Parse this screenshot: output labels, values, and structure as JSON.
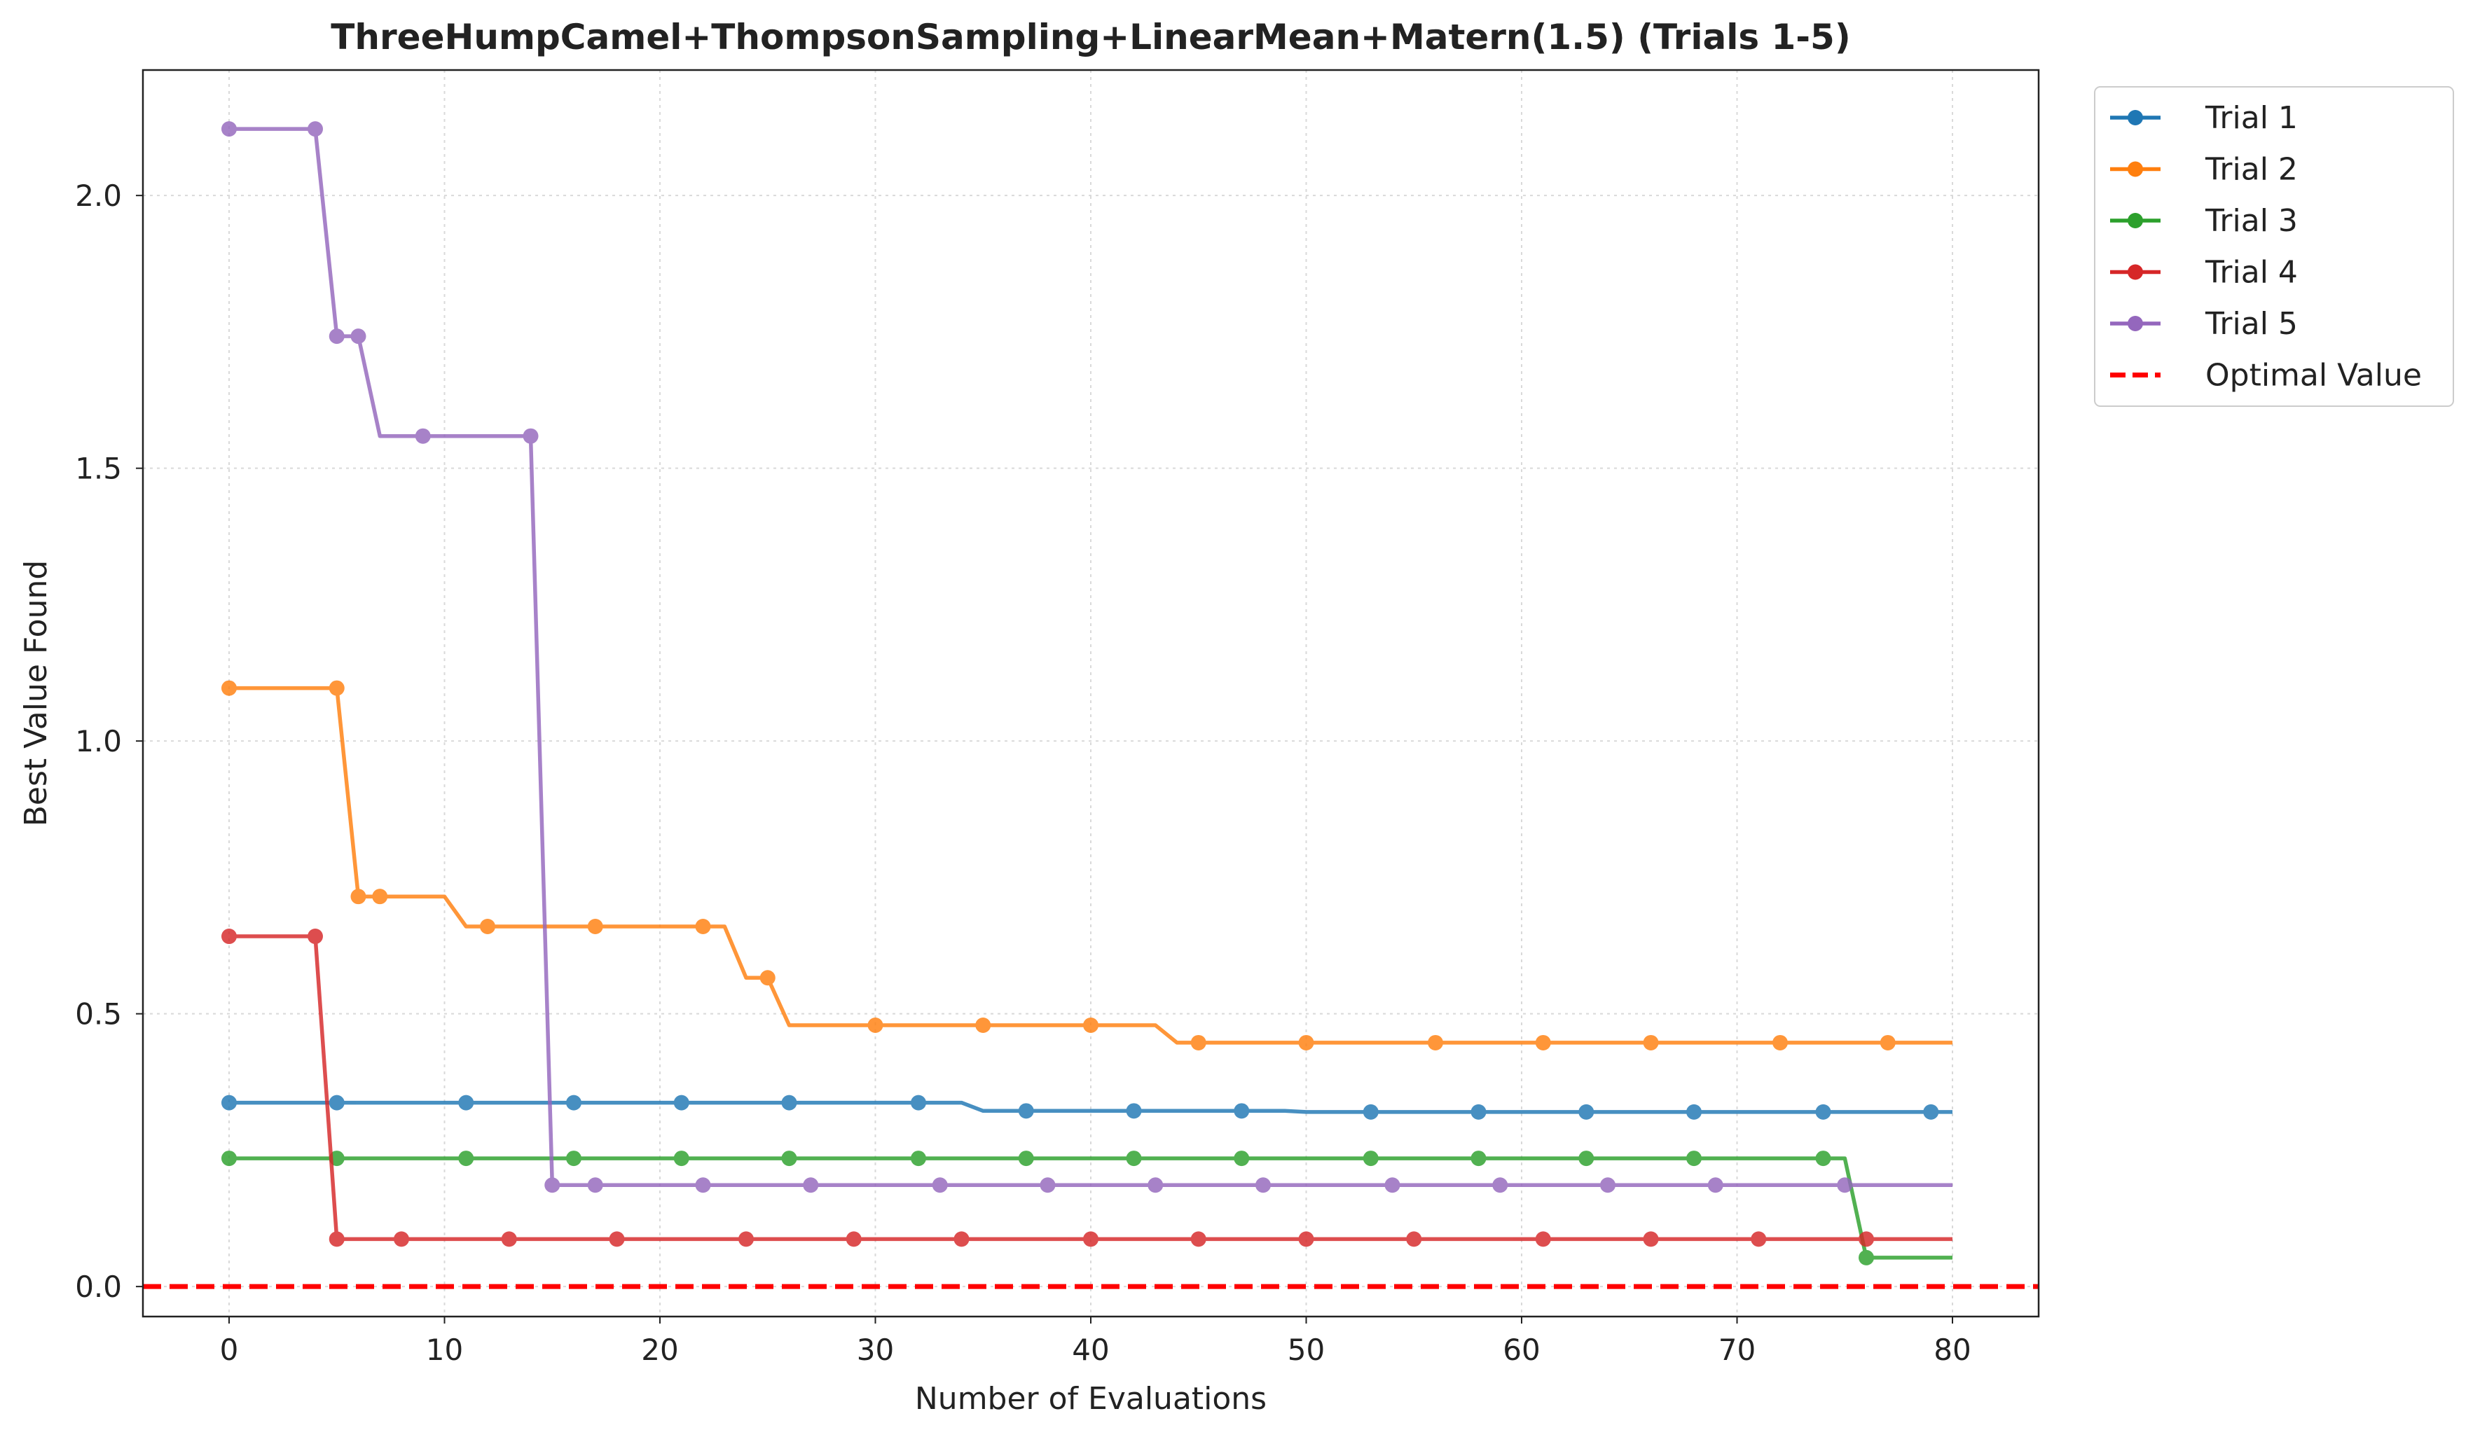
{
  "chart_data": {
    "type": "line",
    "title": "ThreeHumpCamel+ThompsonSampling+LinearMean+Matern(1.5) (Trials 1-5)",
    "xlabel": "Number of Evaluations",
    "ylabel": "Best Value Found",
    "xlim": [
      -4,
      84
    ],
    "ylim": [
      -0.055,
      2.23
    ],
    "xticks": [
      0,
      10,
      20,
      30,
      40,
      50,
      60,
      70,
      80
    ],
    "yticks": [
      0.0,
      0.5,
      1.0,
      1.5,
      2.0
    ],
    "xtick_labels": [
      "0",
      "10",
      "20",
      "30",
      "40",
      "50",
      "60",
      "70",
      "80"
    ],
    "ytick_labels": [
      "0.0",
      "0.5",
      "1.0",
      "1.5",
      "2.0"
    ],
    "grid": true,
    "legend_position": "outside-top-right",
    "series": [
      {
        "name": "Trial 1",
        "color": "#1f77b4",
        "points": [
          [
            0,
            0.337
          ],
          [
            34,
            0.337
          ],
          [
            35,
            0.322
          ],
          [
            49,
            0.322
          ],
          [
            50,
            0.32
          ],
          [
            80,
            0.32
          ]
        ],
        "markers": [
          [
            0,
            0.337
          ],
          [
            5,
            0.337
          ],
          [
            11,
            0.337
          ],
          [
            16,
            0.337
          ],
          [
            21,
            0.337
          ],
          [
            26,
            0.337
          ],
          [
            32,
            0.337
          ],
          [
            37,
            0.322
          ],
          [
            42,
            0.322
          ],
          [
            47,
            0.322
          ],
          [
            53,
            0.32
          ],
          [
            58,
            0.32
          ],
          [
            63,
            0.32
          ],
          [
            68,
            0.32
          ],
          [
            74,
            0.32
          ],
          [
            79,
            0.32
          ]
        ]
      },
      {
        "name": "Trial 2",
        "color": "#ff7f0e",
        "points": [
          [
            0,
            1.097
          ],
          [
            5,
            1.097
          ],
          [
            6,
            0.715
          ],
          [
            10,
            0.715
          ],
          [
            11,
            0.66
          ],
          [
            23,
            0.66
          ],
          [
            24,
            0.566
          ],
          [
            25,
            0.566
          ],
          [
            26,
            0.479
          ],
          [
            43,
            0.479
          ],
          [
            44,
            0.447
          ],
          [
            80,
            0.447
          ]
        ],
        "markers": [
          [
            0,
            1.097
          ],
          [
            5,
            1.097
          ],
          [
            6,
            0.715
          ],
          [
            7,
            0.715
          ],
          [
            12,
            0.66
          ],
          [
            17,
            0.66
          ],
          [
            22,
            0.66
          ],
          [
            25,
            0.566
          ],
          [
            30,
            0.479
          ],
          [
            35,
            0.479
          ],
          [
            40,
            0.479
          ],
          [
            45,
            0.447
          ],
          [
            50,
            0.447
          ],
          [
            56,
            0.447
          ],
          [
            61,
            0.447
          ],
          [
            66,
            0.447
          ],
          [
            72,
            0.447
          ],
          [
            77,
            0.447
          ]
        ]
      },
      {
        "name": "Trial 3",
        "color": "#2ca02c",
        "points": [
          [
            0,
            0.235
          ],
          [
            75,
            0.235
          ],
          [
            76,
            0.053
          ],
          [
            80,
            0.053
          ]
        ],
        "markers": [
          [
            0,
            0.235
          ],
          [
            5,
            0.235
          ],
          [
            11,
            0.235
          ],
          [
            16,
            0.235
          ],
          [
            21,
            0.235
          ],
          [
            26,
            0.235
          ],
          [
            32,
            0.235
          ],
          [
            37,
            0.235
          ],
          [
            42,
            0.235
          ],
          [
            47,
            0.235
          ],
          [
            53,
            0.235
          ],
          [
            58,
            0.235
          ],
          [
            63,
            0.235
          ],
          [
            68,
            0.235
          ],
          [
            74,
            0.235
          ],
          [
            76,
            0.053
          ]
        ]
      },
      {
        "name": "Trial 4",
        "color": "#d62728",
        "points": [
          [
            0,
            0.642
          ],
          [
            4,
            0.642
          ],
          [
            5,
            0.087
          ],
          [
            80,
            0.087
          ]
        ],
        "markers": [
          [
            0,
            0.642
          ],
          [
            4,
            0.642
          ],
          [
            5,
            0.087
          ],
          [
            8,
            0.087
          ],
          [
            13,
            0.087
          ],
          [
            18,
            0.087
          ],
          [
            24,
            0.087
          ],
          [
            29,
            0.087
          ],
          [
            34,
            0.087
          ],
          [
            40,
            0.087
          ],
          [
            45,
            0.087
          ],
          [
            50,
            0.087
          ],
          [
            55,
            0.087
          ],
          [
            61,
            0.087
          ],
          [
            66,
            0.087
          ],
          [
            71,
            0.087
          ],
          [
            76,
            0.087
          ]
        ]
      },
      {
        "name": "Trial 5",
        "color": "#9467bd",
        "points": [
          [
            0,
            2.122
          ],
          [
            4,
            2.122
          ],
          [
            5,
            1.742
          ],
          [
            6,
            1.742
          ],
          [
            7,
            1.559
          ],
          [
            14,
            1.559
          ],
          [
            15,
            0.186
          ],
          [
            80,
            0.186
          ]
        ],
        "markers": [
          [
            0,
            2.122
          ],
          [
            4,
            2.122
          ],
          [
            5,
            1.742
          ],
          [
            6,
            1.742
          ],
          [
            9,
            1.559
          ],
          [
            14,
            1.559
          ],
          [
            15,
            0.186
          ],
          [
            17,
            0.186
          ],
          [
            22,
            0.186
          ],
          [
            27,
            0.186
          ],
          [
            33,
            0.186
          ],
          [
            38,
            0.186
          ],
          [
            43,
            0.186
          ],
          [
            48,
            0.186
          ],
          [
            54,
            0.186
          ],
          [
            59,
            0.186
          ],
          [
            64,
            0.186
          ],
          [
            69,
            0.186
          ],
          [
            75,
            0.186
          ]
        ]
      }
    ],
    "reference_line": {
      "name": "Optimal Value",
      "y": 0.0,
      "color": "#ff0000",
      "style": "dashed"
    }
  }
}
